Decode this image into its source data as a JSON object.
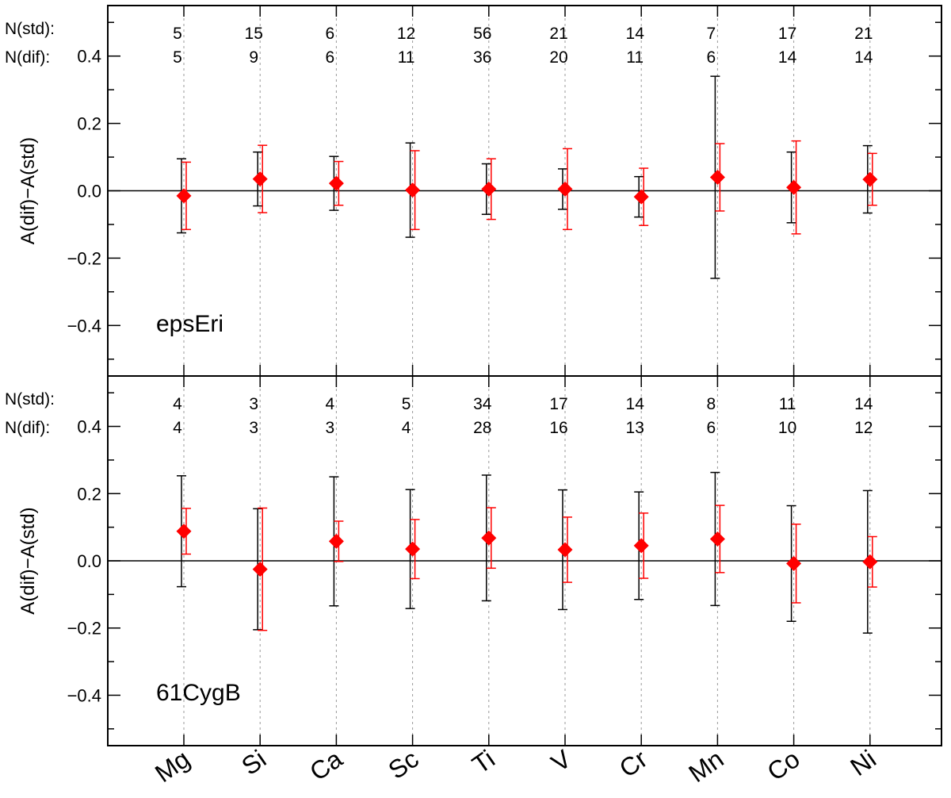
{
  "chart_data": [
    {
      "type": "scatter",
      "panel_label": "epsEri",
      "ylabel": "A(dif)−A(std)",
      "ylim": [
        -0.55,
        0.55
      ],
      "yticks": [
        "0.4",
        "0.2",
        "0.0",
        "−0.2",
        "−0.4"
      ],
      "categories": [
        "Mg",
        "Si",
        "Ca",
        "Sc",
        "Ti",
        "V",
        "Cr",
        "Mn",
        "Co",
        "Ni"
      ],
      "n_std_label": "N(std):",
      "n_dif_label": "N(dif):",
      "n_std": [
        "5",
        "15",
        "6",
        "12",
        "56",
        "21",
        "14",
        "7",
        "17",
        "21"
      ],
      "n_dif": [
        "5",
        "9",
        "6",
        "11",
        "36",
        "20",
        "11",
        "6",
        "14",
        "14"
      ],
      "values": [
        -0.015,
        0.035,
        0.022,
        0.002,
        0.005,
        0.005,
        -0.018,
        0.04,
        0.01,
        0.034
      ],
      "err_std": [
        0.11,
        0.08,
        0.08,
        0.14,
        0.075,
        0.06,
        0.06,
        0.3,
        0.105,
        0.1
      ],
      "err_dif": [
        0.1,
        0.1,
        0.065,
        0.117,
        0.09,
        0.12,
        0.085,
        0.1,
        0.138,
        0.077
      ],
      "grid": "dotted vertical at each category",
      "colors": {
        "marker": "#ff0000",
        "err_dif": "#ff0000",
        "err_std": "#000000"
      }
    },
    {
      "type": "scatter",
      "panel_label": "61CygB",
      "ylabel": "A(dif)−A(std)",
      "ylim": [
        -0.55,
        0.55
      ],
      "yticks": [
        "0.4",
        "0.2",
        "0.0",
        "−0.2",
        "−0.4"
      ],
      "categories": [
        "Mg",
        "Si",
        "Ca",
        "Sc",
        "Ti",
        "V",
        "Cr",
        "Mn",
        "Co",
        "Ni"
      ],
      "n_std_label": "N(std):",
      "n_dif_label": "N(dif):",
      "n_std": [
        "4",
        "3",
        "4",
        "5",
        "34",
        "17",
        "14",
        "8",
        "11",
        "14"
      ],
      "n_dif": [
        "4",
        "3",
        "3",
        "4",
        "28",
        "16",
        "13",
        "6",
        "10",
        "12"
      ],
      "values": [
        0.088,
        -0.025,
        0.058,
        0.035,
        0.068,
        0.033,
        0.045,
        0.065,
        -0.008,
        -0.003
      ],
      "err_std": [
        0.165,
        0.18,
        0.192,
        0.177,
        0.187,
        0.178,
        0.16,
        0.198,
        0.172,
        0.212
      ],
      "err_dif": [
        0.068,
        0.182,
        0.06,
        0.088,
        0.09,
        0.097,
        0.097,
        0.1,
        0.117,
        0.075
      ],
      "grid": "dotted vertical at each category",
      "colors": {
        "marker": "#ff0000",
        "err_dif": "#ff0000",
        "err_std": "#000000"
      }
    }
  ]
}
